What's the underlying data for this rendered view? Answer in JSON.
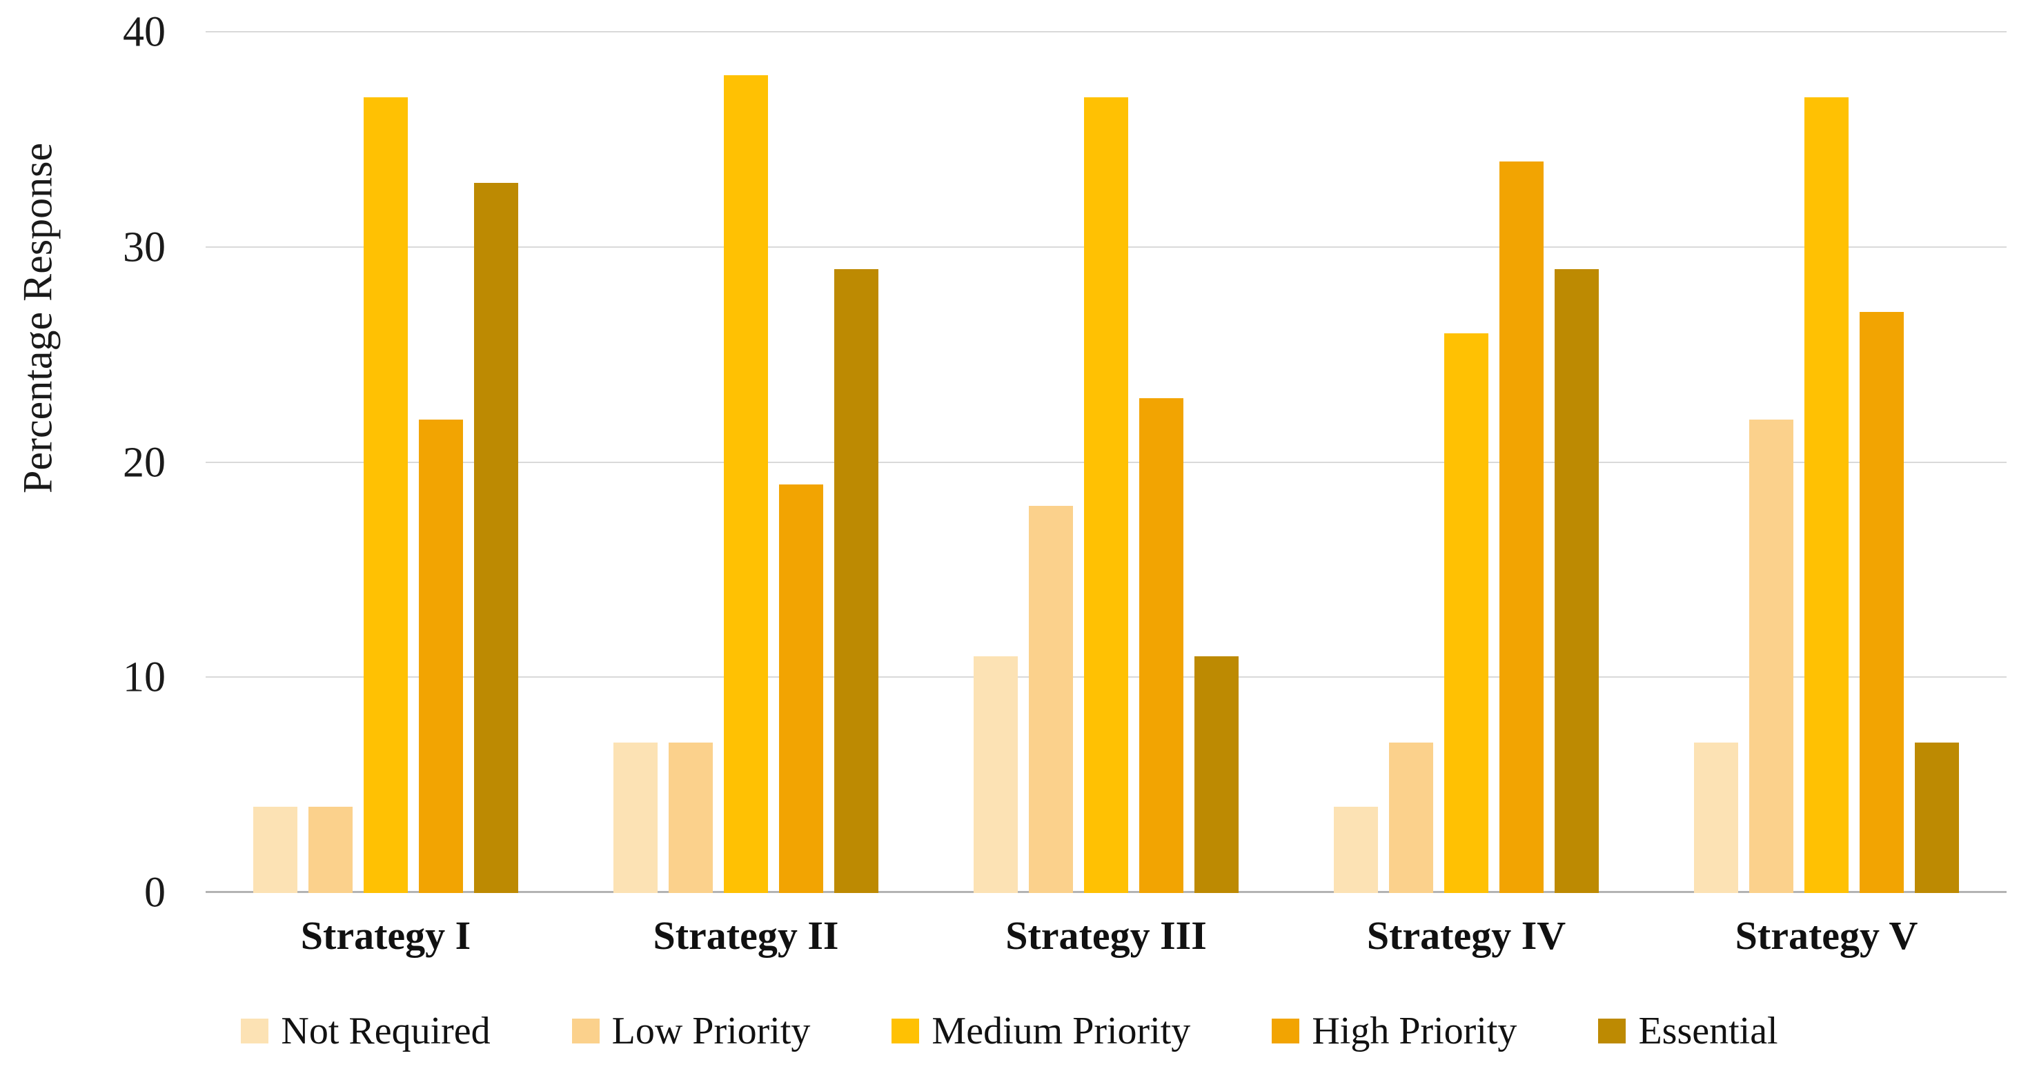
{
  "chart_data": {
    "type": "bar",
    "title": "",
    "xlabel": "",
    "ylabel": "Percentage Response",
    "ylim": [
      0,
      40
    ],
    "yticks": [
      0,
      10,
      20,
      30,
      40
    ],
    "grid": "horizontal-gridlines-on",
    "legend_position": "bottom",
    "categories": [
      "Strategy I",
      "Strategy II",
      "Strategy III",
      "Strategy IV",
      "Strategy V"
    ],
    "series": [
      {
        "name": "Not Required",
        "color": "#FCE2B4",
        "values": [
          4,
          7,
          11,
          4,
          7
        ]
      },
      {
        "name": "Low Priority",
        "color": "#FBD18C",
        "values": [
          4,
          7,
          18,
          7,
          22
        ]
      },
      {
        "name": "Medium Priority",
        "color": "#FFC103",
        "values": [
          37,
          38,
          37,
          26,
          37
        ]
      },
      {
        "name": "High Priority",
        "color": "#F2A402",
        "values": [
          22,
          19,
          23,
          34,
          27
        ]
      },
      {
        "name": "Essential",
        "color": "#BD8A02",
        "values": [
          33,
          29,
          11,
          29,
          7
        ]
      }
    ]
  },
  "colors": {
    "background": "#FFFFFF",
    "gridline": "#D9D9D9",
    "axis_line": "#B3B3B3",
    "text": "#111111"
  }
}
